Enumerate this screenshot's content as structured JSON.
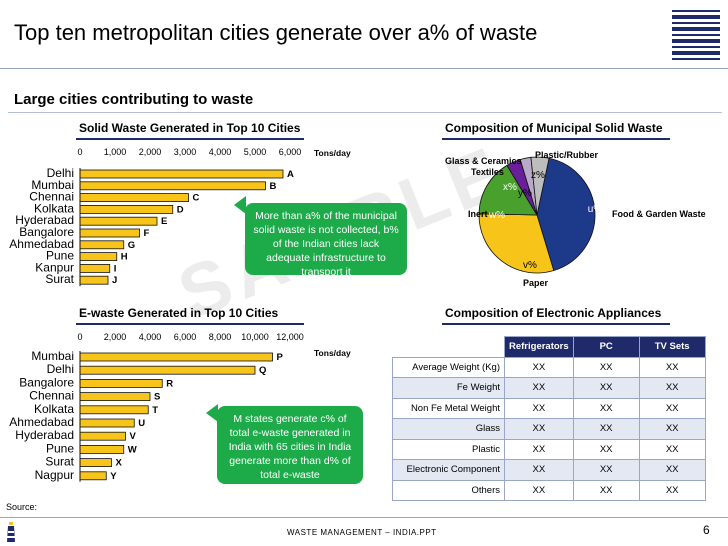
{
  "slide": {
    "title": "Top ten metropolitan cities generate over a% of waste",
    "section_header": "Large cities contributing to waste",
    "source_label": "Source:",
    "footer_text": "WASTE MANAGEMENT – INDIA.PPT",
    "page_number": "6",
    "watermark": "SAMPLE",
    "accent_color": "#1f2a6b",
    "bar_color": "#f7c41a",
    "callout_color": "#1dab4a"
  },
  "callouts": {
    "solid": "More than a% of the municipal solid waste is not collected, b% of the Indian cities lack adequate infrastructure to transport it",
    "ewaste": "M states generate c% of total e-waste generated in India with 65 cities in India generate more than d% of total e-waste"
  },
  "chart_data": [
    {
      "type": "bar",
      "orientation": "horizontal",
      "title": "Solid Waste Generated in Top 10 Cities",
      "unit_label": "Tons/day",
      "categories": [
        "Delhi",
        "Mumbai",
        "Chennai",
        "Kolkata",
        "Hyderabad",
        "Bangalore",
        "Ahmedabad",
        "Pune",
        "Kanpur",
        "Surat"
      ],
      "values": [
        5800,
        5300,
        3100,
        2650,
        2200,
        1700,
        1250,
        1050,
        850,
        800
      ],
      "data_labels": [
        "A",
        "B",
        "C",
        "D",
        "E",
        "F",
        "G",
        "H",
        "I",
        "J"
      ],
      "ticks": [
        "0",
        "1,000",
        "2,000",
        "3,000",
        "4,000",
        "5,000",
        "6,000"
      ],
      "xlim": [
        0,
        6000
      ],
      "grid": false,
      "legend": "none"
    },
    {
      "type": "bar",
      "orientation": "horizontal",
      "title": "E-waste Generated in Top 10 Cities",
      "unit_label": "Tons/day",
      "categories": [
        "Mumbai",
        "Delhi",
        "Bangalore",
        "Chennai",
        "Kolkata",
        "Ahmedabad",
        "Hyderabad",
        "Pune",
        "Surat",
        "Nagpur"
      ],
      "values": [
        11000,
        10000,
        4700,
        4000,
        3900,
        3100,
        2600,
        2500,
        1800,
        1500
      ],
      "data_labels": [
        "P",
        "Q",
        "R",
        "S",
        "T",
        "U",
        "V",
        "W",
        "X",
        "Y"
      ],
      "ticks": [
        "0",
        "2,000",
        "4,000",
        "6,000",
        "8,000",
        "10,000",
        "12,000"
      ],
      "xlim": [
        0,
        12000
      ],
      "grid": false,
      "legend": "none"
    },
    {
      "type": "pie",
      "title": "Composition of Municipal Solid Waste",
      "slices": [
        {
          "name": "Food & Garden Waste",
          "label": "u%",
          "value": 42,
          "color": "#1d3a8a"
        },
        {
          "name": "Paper",
          "label": "v%",
          "value": 30,
          "color": "#f7c41a"
        },
        {
          "name": "Inert",
          "label": "w%",
          "value": 16,
          "color": "#4aa02c"
        },
        {
          "name": "Textiles",
          "label": "x%",
          "value": 4,
          "color": "#6a1f9a"
        },
        {
          "name": "Glass & Ceramics",
          "label": "y%",
          "value": 3,
          "color": "#b8a9c9"
        },
        {
          "name": "Plastic/Rubber",
          "label": "z%",
          "value": 5,
          "color": "#bdbdbd"
        }
      ],
      "legend": "outside-labels"
    },
    {
      "type": "table",
      "title": "Composition of Electronic Appliances",
      "columns": [
        "Refrigerators",
        "PC",
        "TV Sets"
      ],
      "rows": [
        {
          "label": "Average Weight (Kg)",
          "values": [
            "XX",
            "XX",
            "XX"
          ]
        },
        {
          "label": "Fe Weight",
          "values": [
            "XX",
            "XX",
            "XX"
          ]
        },
        {
          "label": "Non Fe Metal Weight",
          "values": [
            "XX",
            "XX",
            "XX"
          ]
        },
        {
          "label": "Glass",
          "values": [
            "XX",
            "XX",
            "XX"
          ]
        },
        {
          "label": "Plastic",
          "values": [
            "XX",
            "XX",
            "XX"
          ]
        },
        {
          "label": "Electronic Component",
          "values": [
            "XX",
            "XX",
            "XX"
          ]
        },
        {
          "label": "Others",
          "values": [
            "XX",
            "XX",
            "XX"
          ]
        }
      ]
    }
  ]
}
